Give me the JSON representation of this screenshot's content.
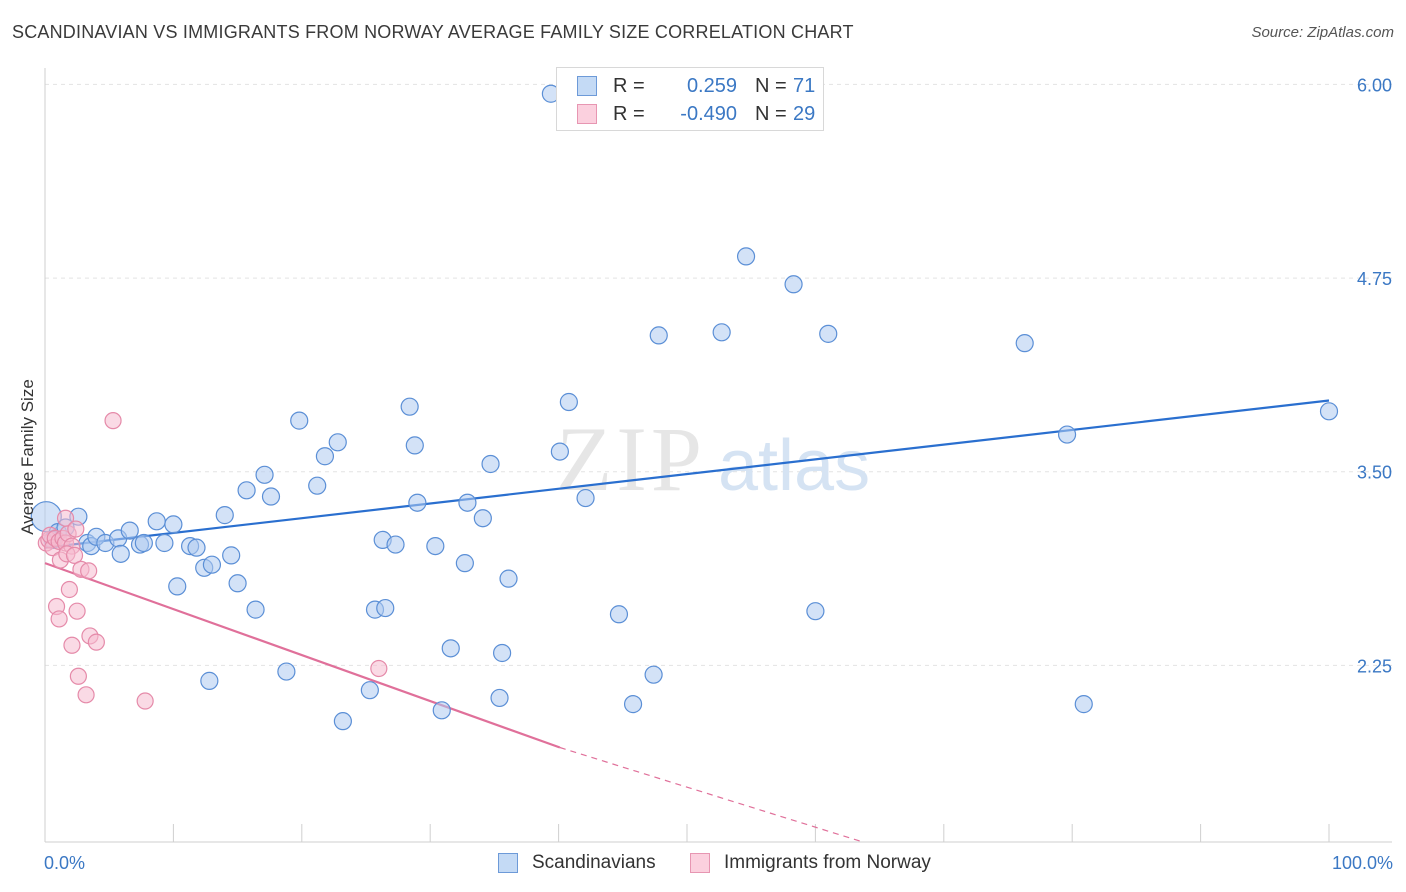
{
  "title": "SCANDINAVIAN VS IMMIGRANTS FROM NORWAY AVERAGE FAMILY SIZE CORRELATION CHART",
  "source": "Source: ZipAtlas.com",
  "watermark": {
    "zip": "ZIP",
    "atlas": "atlas"
  },
  "legend_stats": [
    {
      "r_label": "R =",
      "r_value": "0.259",
      "n_label": "N =",
      "n_value": "71"
    },
    {
      "r_label": "R =",
      "r_value": "-0.490",
      "n_label": "N =",
      "n_value": "29"
    }
  ],
  "colors": {
    "blue_fill": "#aecbf0",
    "blue_stroke": "#5b8fd6",
    "blue_line": "#2a6fcf",
    "pink_fill": "#f5bcd0",
    "pink_stroke": "#e58aa9",
    "pink_line": "#e0709a",
    "grid": "#e3e3e3",
    "axis_text": "#3b78c4"
  },
  "chart_data": {
    "type": "scatter",
    "title": "SCANDINAVIAN VS IMMIGRANTS FROM NORWAY AVERAGE FAMILY SIZE CORRELATION CHART",
    "xlabel": "",
    "ylabel": "Average Family Size",
    "xlim": [
      0,
      100
    ],
    "ylim": [
      1.11,
      6.19
    ],
    "x_tick_labels": [
      "0.0%",
      "100.0%"
    ],
    "y_ticks": [
      2.25,
      3.5,
      4.75,
      6.0
    ],
    "y_tick_labels": [
      "2.25",
      "3.50",
      "4.75",
      "6.00"
    ],
    "series": [
      {
        "name": "Scandinavians",
        "r": 0.259,
        "n": 71,
        "trend": {
          "x": [
            0,
            100
          ],
          "y": [
            3.01,
            3.96
          ]
        },
        "points": [
          [
            0.1,
            3.21
          ],
          [
            1.0,
            3.11
          ],
          [
            1.6,
            3.14
          ],
          [
            2.6,
            3.21
          ],
          [
            3.3,
            3.04
          ],
          [
            3.6,
            3.02
          ],
          [
            4.0,
            3.08
          ],
          [
            4.7,
            3.04
          ],
          [
            5.7,
            3.07
          ],
          [
            5.9,
            2.97
          ],
          [
            6.6,
            3.12
          ],
          [
            7.4,
            3.03
          ],
          [
            7.7,
            3.04
          ],
          [
            9.3,
            3.04
          ],
          [
            8.7,
            3.18
          ],
          [
            10.0,
            3.16
          ],
          [
            10.3,
            2.76
          ],
          [
            11.3,
            3.02
          ],
          [
            11.8,
            3.01
          ],
          [
            12.4,
            2.88
          ],
          [
            13.0,
            2.9
          ],
          [
            14.0,
            3.22
          ],
          [
            14.5,
            2.96
          ],
          [
            12.8,
            2.15
          ],
          [
            15.0,
            2.78
          ],
          [
            15.7,
            3.38
          ],
          [
            16.4,
            2.61
          ],
          [
            17.1,
            3.48
          ],
          [
            17.6,
            3.34
          ],
          [
            18.8,
            2.21
          ],
          [
            19.8,
            3.83
          ],
          [
            21.2,
            3.41
          ],
          [
            21.8,
            3.6
          ],
          [
            22.8,
            3.69
          ],
          [
            23.2,
            1.89
          ],
          [
            25.3,
            2.09
          ],
          [
            25.7,
            2.61
          ],
          [
            26.5,
            2.62
          ],
          [
            26.3,
            3.06
          ],
          [
            27.3,
            3.03
          ],
          [
            28.4,
            3.92
          ],
          [
            28.8,
            3.67
          ],
          [
            29.0,
            3.3
          ],
          [
            30.4,
            3.02
          ],
          [
            30.9,
            1.96
          ],
          [
            31.6,
            2.36
          ],
          [
            32.7,
            2.91
          ],
          [
            32.9,
            3.3
          ],
          [
            34.1,
            3.2
          ],
          [
            34.7,
            3.55
          ],
          [
            35.4,
            2.04
          ],
          [
            35.6,
            2.33
          ],
          [
            36.1,
            2.81
          ],
          [
            39.4,
            5.94
          ],
          [
            40.1,
            3.63
          ],
          [
            40.8,
            3.95
          ],
          [
            42.1,
            3.33
          ],
          [
            44.7,
            2.58
          ],
          [
            45.8,
            2.0
          ],
          [
            47.4,
            2.19
          ],
          [
            47.8,
            4.38
          ],
          [
            52.7,
            4.4
          ],
          [
            54.6,
            4.89
          ],
          [
            58.3,
            4.71
          ],
          [
            60.0,
            2.6
          ],
          [
            61.0,
            4.39
          ],
          [
            76.3,
            4.33
          ],
          [
            79.6,
            3.74
          ],
          [
            80.9,
            2.0
          ],
          [
            100.0,
            3.89
          ],
          [
            0.6,
            3.06
          ]
        ]
      },
      {
        "name": "Immigrants from Norway",
        "r": -0.49,
        "n": 29,
        "trend": {
          "x": [
            0,
            40.1
          ],
          "y": [
            2.91,
            1.72
          ]
        },
        "trend_dashed": {
          "x": [
            40.1,
            63.7
          ],
          "y": [
            1.72,
            1.11
          ]
        },
        "points": [
          [
            0.1,
            3.04
          ],
          [
            0.3,
            3.06
          ],
          [
            0.4,
            3.09
          ],
          [
            0.6,
            3.01
          ],
          [
            0.8,
            3.07
          ],
          [
            1.1,
            3.05
          ],
          [
            1.4,
            3.07
          ],
          [
            1.6,
            3.04
          ],
          [
            1.8,
            3.1
          ],
          [
            2.1,
            3.02
          ],
          [
            1.6,
            3.2
          ],
          [
            2.4,
            3.13
          ],
          [
            1.2,
            2.93
          ],
          [
            1.7,
            2.97
          ],
          [
            2.3,
            2.96
          ],
          [
            2.8,
            2.87
          ],
          [
            3.4,
            2.86
          ],
          [
            1.9,
            2.74
          ],
          [
            0.9,
            2.63
          ],
          [
            1.1,
            2.55
          ],
          [
            2.5,
            2.6
          ],
          [
            3.5,
            2.44
          ],
          [
            4.0,
            2.4
          ],
          [
            2.1,
            2.38
          ],
          [
            2.6,
            2.18
          ],
          [
            3.2,
            2.06
          ],
          [
            7.8,
            2.02
          ],
          [
            5.3,
            3.83
          ],
          [
            26.0,
            2.23
          ]
        ]
      }
    ]
  },
  "bottom_legend": [
    "Scandinavians",
    "Immigrants from Norway"
  ]
}
